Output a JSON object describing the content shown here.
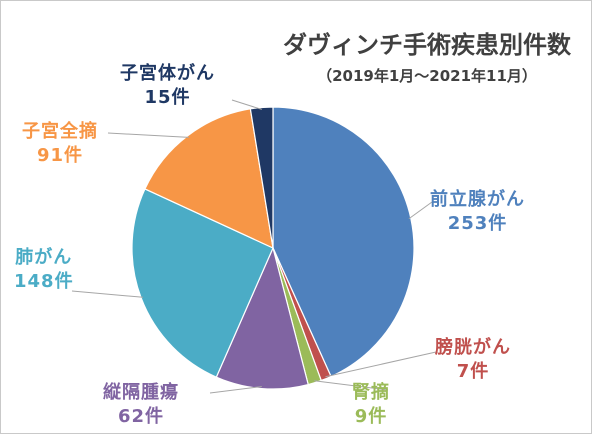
{
  "chart_data": {
    "type": "pie",
    "title": "ダヴィンチ手術疾患別件数",
    "subtitle": "（2019年1月～2021年11月）",
    "slices": [
      {
        "name": "前立腺がん",
        "value": 253,
        "value_label": "253件",
        "color": "#4f81bd"
      },
      {
        "name": "膀胱がん",
        "value": 7,
        "value_label": "7件",
        "color": "#c0504d"
      },
      {
        "name": "腎摘",
        "value": 9,
        "value_label": "9件",
        "color": "#9bbb59"
      },
      {
        "name": "縦隔腫瘍",
        "value": 62,
        "value_label": "62件",
        "color": "#8064a2"
      },
      {
        "name": "肺がん",
        "value": 148,
        "value_label": "148件",
        "color": "#4bacc6"
      },
      {
        "name": "子宮全摘",
        "value": 91,
        "value_label": "91件",
        "color": "#f79646"
      },
      {
        "name": "子宮体がん",
        "value": 15,
        "value_label": "15件",
        "color": "#1f3864"
      }
    ],
    "start_angle": "12 o'clock",
    "direction": "clockwise",
    "legend": "none",
    "data_labels": "outside with leader lines"
  }
}
